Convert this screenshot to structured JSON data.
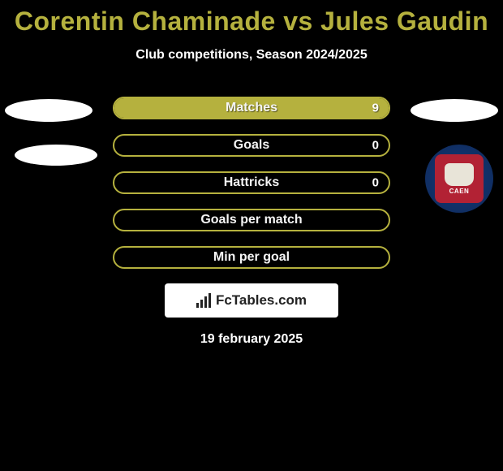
{
  "colors": {
    "background": "#000000",
    "accent": "#b5b13e",
    "text": "#ffffff",
    "oval": "#ffffff",
    "brand_bg": "#ffffff",
    "brand_fg": "#222222",
    "crest_outer": "#16397a",
    "crest_inner": "#b22234",
    "crest_face": "#e8e4d8"
  },
  "header": {
    "title": "Corentin Chaminade vs Jules Gaudin",
    "subtitle": "Club competitions, Season 2024/2025"
  },
  "stats": [
    {
      "label": "Matches",
      "value_right": "9",
      "fill_left_pct": 0,
      "fill_right_pct": 100
    },
    {
      "label": "Goals",
      "value_right": "0",
      "fill_left_pct": 0,
      "fill_right_pct": 0
    },
    {
      "label": "Hattricks",
      "value_right": "0",
      "fill_left_pct": 0,
      "fill_right_pct": 0
    },
    {
      "label": "Goals per match",
      "value_right": "",
      "fill_left_pct": 0,
      "fill_right_pct": 0
    },
    {
      "label": "Min per goal",
      "value_right": "",
      "fill_left_pct": 0,
      "fill_right_pct": 0
    }
  ],
  "crest": {
    "text": "CAEN"
  },
  "brand": {
    "text": "FcTables.com"
  },
  "date": "19 february 2025"
}
